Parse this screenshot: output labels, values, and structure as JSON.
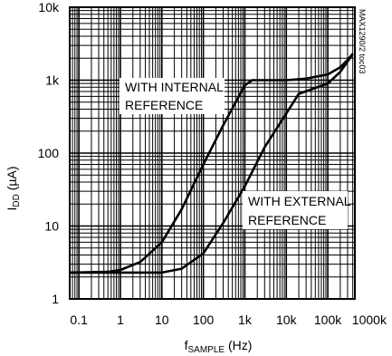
{
  "chart_data": {
    "type": "line",
    "title": "",
    "xlabel": {
      "base": "f",
      "sub": "SAMPLE",
      "unit": " (Hz)"
    },
    "ylabel": {
      "base": "I",
      "sub": "DD",
      "unit": " (µA)"
    },
    "x_scale": "log",
    "y_scale": "log",
    "xlim": [
      0.06,
      450000
    ],
    "ylim": [
      1,
      10000
    ],
    "x_ticks": [
      0.1,
      1,
      10,
      100,
      1000,
      10000,
      100000,
      1000000
    ],
    "x_tick_labels": [
      "0.1",
      "1",
      "10",
      "100",
      "1k",
      "10k",
      "100k",
      "1000k"
    ],
    "y_ticks": [
      1,
      10,
      100,
      1000,
      10000
    ],
    "y_tick_labels": [
      "1",
      "10",
      "100",
      "1k",
      "10k"
    ],
    "grid": true,
    "series": [
      {
        "label_lines": [
          "WITH INTERNAL",
          "REFERENCE"
        ],
        "points": [
          [
            0.06,
            2.3
          ],
          [
            0.5,
            2.35
          ],
          [
            1,
            2.5
          ],
          [
            3,
            3.2
          ],
          [
            10,
            6
          ],
          [
            30,
            17
          ],
          [
            100,
            70
          ],
          [
            300,
            240
          ],
          [
            1000,
            850
          ],
          [
            1500,
            1000
          ],
          [
            10000,
            1000
          ],
          [
            30000,
            1050
          ],
          [
            100000,
            1200
          ],
          [
            200000,
            1500
          ],
          [
            300000,
            1900
          ],
          [
            400000,
            2300
          ]
        ]
      },
      {
        "label_lines": [
          "WITH EXTERNAL",
          "REFERENCE"
        ],
        "points": [
          [
            0.06,
            2.3
          ],
          [
            10,
            2.3
          ],
          [
            30,
            2.6
          ],
          [
            100,
            4.2
          ],
          [
            300,
            11
          ],
          [
            1000,
            35
          ],
          [
            3000,
            120
          ],
          [
            10000,
            350
          ],
          [
            20000,
            650
          ],
          [
            100000,
            900
          ],
          [
            200000,
            1300
          ],
          [
            300000,
            1800
          ],
          [
            400000,
            2300
          ]
        ]
      }
    ]
  },
  "side_note": "MAX1290/2 toc03"
}
